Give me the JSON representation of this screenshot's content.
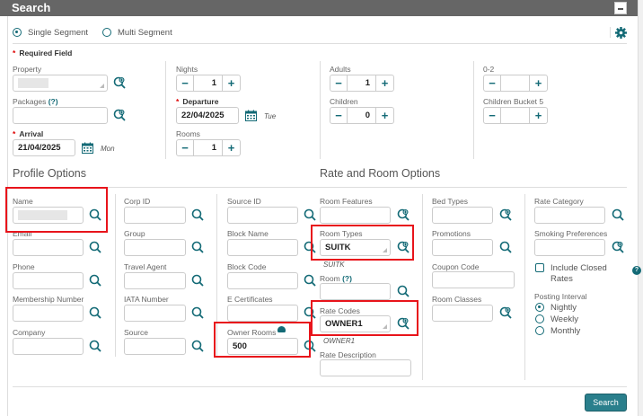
{
  "header": {
    "title": "Search"
  },
  "segment": {
    "options": [
      "Single Segment",
      "Multi Segment"
    ],
    "selected": "Single Segment"
  },
  "required_note": "Required Field",
  "fields": {
    "property": {
      "label": "Property",
      "value": ""
    },
    "packages": {
      "label": "Packages",
      "help": "(?)",
      "value": ""
    },
    "arrival": {
      "label": "Arrival",
      "value": "21/04/2025",
      "day": "Mon"
    },
    "nights": {
      "label": "Nights",
      "value": "1"
    },
    "departure": {
      "label": "Departure",
      "value": "22/04/2025",
      "day": "Tue"
    },
    "rooms": {
      "label": "Rooms",
      "value": "1"
    },
    "adults": {
      "label": "Adults",
      "value": "1"
    },
    "children": {
      "label": "Children",
      "value": "0"
    },
    "age_0_2": {
      "label": "0-2",
      "value": ""
    },
    "children_bucket_5": {
      "label": "Children Bucket 5",
      "value": ""
    }
  },
  "profile": {
    "title": "Profile Options",
    "col1": [
      {
        "label": "Name",
        "value": ""
      },
      {
        "label": "Email",
        "value": ""
      },
      {
        "label": "Phone",
        "value": ""
      },
      {
        "label": "Membership Number",
        "value": ""
      },
      {
        "label": "Company",
        "value": ""
      }
    ],
    "col2": [
      {
        "label": "Corp ID",
        "value": ""
      },
      {
        "label": "Group",
        "value": ""
      },
      {
        "label": "Travel Agent",
        "value": ""
      },
      {
        "label": "IATA Number",
        "value": ""
      },
      {
        "label": "Source",
        "value": ""
      }
    ],
    "col3": [
      {
        "label": "Source ID",
        "value": ""
      },
      {
        "label": "Block Name",
        "value": ""
      },
      {
        "label": "Block Code",
        "value": ""
      },
      {
        "label": "E Certificates",
        "value": ""
      },
      {
        "label": "Owner Rooms",
        "value": "500"
      }
    ]
  },
  "rate": {
    "title": "Rate and Room Options",
    "room_features": {
      "label": "Room Features",
      "value": ""
    },
    "room_types": {
      "label": "Room Types",
      "value": "SUITK",
      "caption": "SUITK"
    },
    "room": {
      "label": "Room",
      "help": "(?)",
      "value": ""
    },
    "rate_codes": {
      "label": "Rate Codes",
      "value": "OWNER1",
      "caption": "OWNER1"
    },
    "rate_description": {
      "label": "Rate Description",
      "value": ""
    },
    "bed_types": {
      "label": "Bed Types",
      "value": ""
    },
    "promotions": {
      "label": "Promotions",
      "value": ""
    },
    "coupon_code": {
      "label": "Coupon Code",
      "value": ""
    },
    "room_classes": {
      "label": "Room Classes",
      "value": ""
    },
    "rate_category": {
      "label": "Rate Category",
      "value": ""
    },
    "smoking": {
      "label": "Smoking Preferences",
      "value": ""
    },
    "include_closed": {
      "label_line1": "Include Closed",
      "label_line2": "Rates",
      "checked": false
    },
    "posting_interval": {
      "label": "Posting Interval",
      "options": [
        "Nightly",
        "Weekly",
        "Monthly"
      ],
      "selected": "Nightly"
    }
  },
  "search_button": "Search",
  "colors": {
    "header": "#666666",
    "accent": "#136a76",
    "button": "#2a7f8c",
    "highlight": "#e8141b"
  }
}
